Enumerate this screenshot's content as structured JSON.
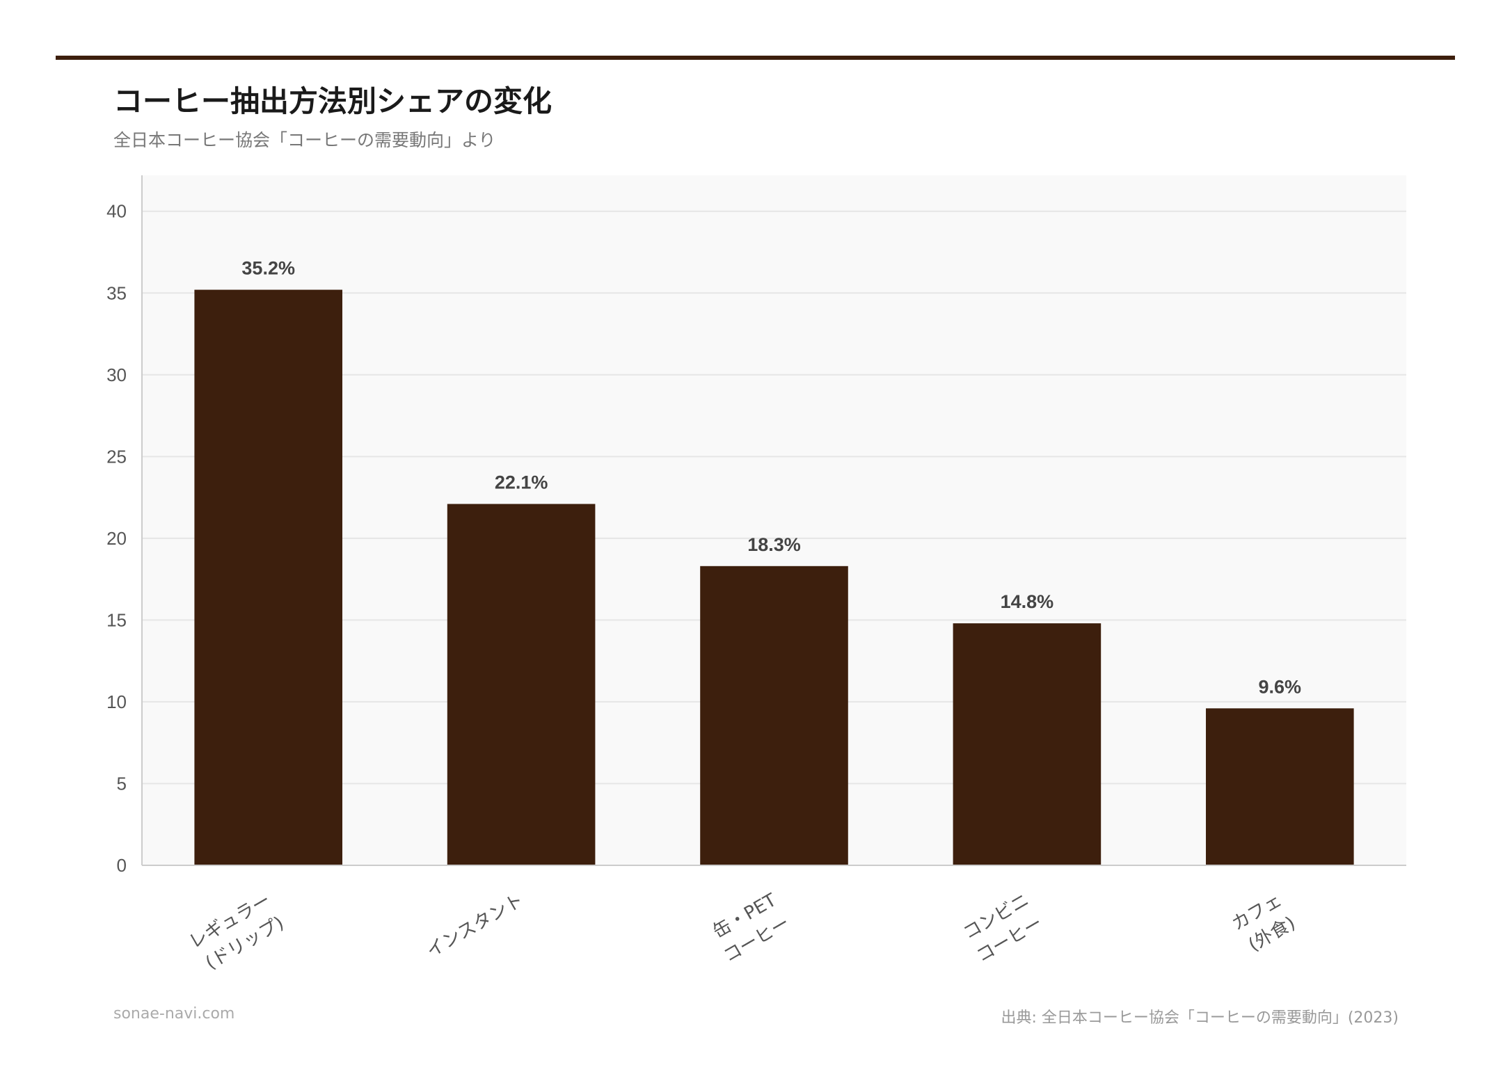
{
  "header": {
    "title": "コーヒー抽出方法別シェアの変化",
    "subtitle": "全日本コーヒー協会「コーヒーの需要動向」より"
  },
  "footer": {
    "site": "sonae-navi.com",
    "source": "出典: 全日本コーヒー協会「コーヒーの需要動向」(2023)"
  },
  "colors": {
    "bar": "#3d1f0d",
    "accent": "#3d1f0d",
    "plot_bg": "#f9f9f9",
    "grid": "#e6e6e6"
  },
  "chart_data": {
    "type": "bar",
    "categories": [
      [
        "レギュラー",
        "(ドリップ)"
      ],
      [
        "インスタント"
      ],
      [
        "缶・PET",
        "コーヒー"
      ],
      [
        "コンビニ",
        "コーヒー"
      ],
      [
        "カフェ",
        "(外食)"
      ]
    ],
    "values": [
      35.2,
      22.1,
      18.3,
      14.8,
      9.6
    ],
    "data_labels": [
      "35.2%",
      "22.1%",
      "18.3%",
      "14.8%",
      "9.6%"
    ],
    "yticks": [
      0,
      5,
      10,
      15,
      20,
      25,
      30,
      35,
      40
    ],
    "ylim": [
      0,
      42.2
    ],
    "grid": true,
    "title": "",
    "xlabel": "",
    "ylabel": ""
  }
}
